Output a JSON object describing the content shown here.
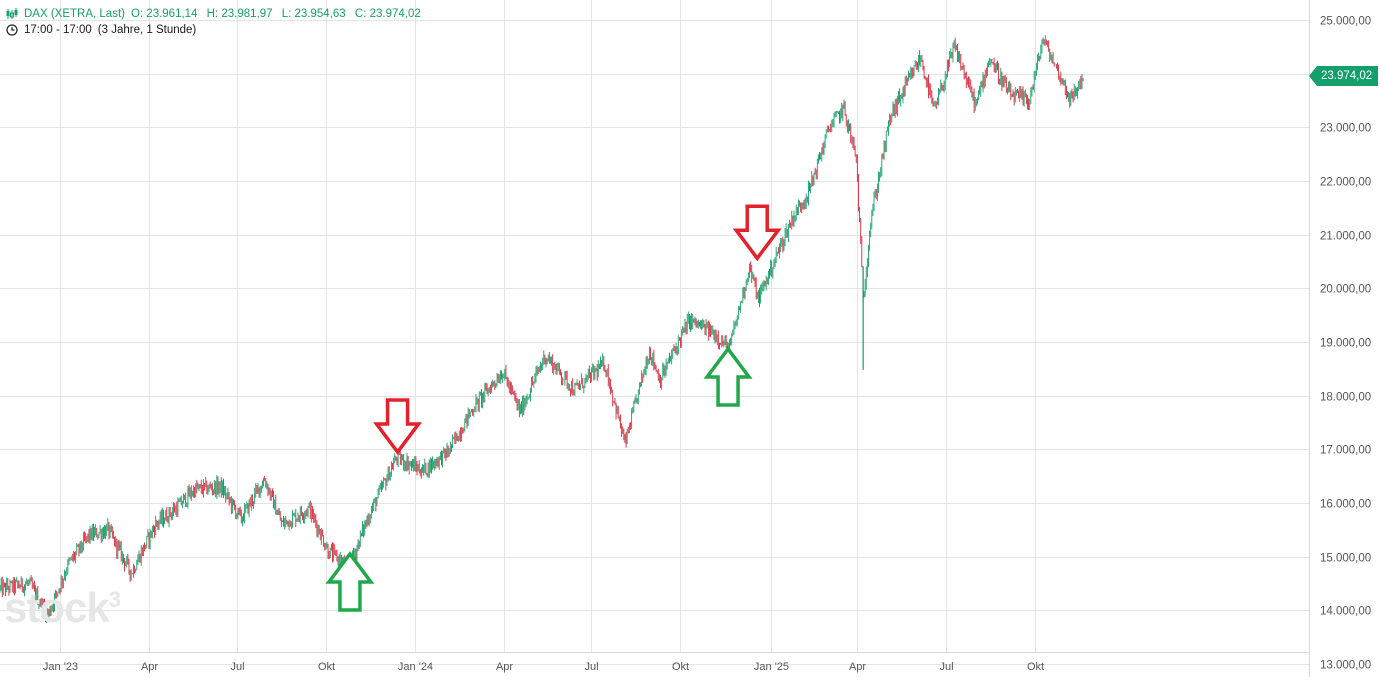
{
  "header": {
    "instrument": "DAX (XETRA, Last)",
    "open": "O: 23.961,14",
    "high": "H: 23.981,97",
    "low": "L: 23.954,63",
    "close": "C: 23.974,02",
    "session": "17:00 - 17:00",
    "range": "(3 Jahre, 1 Stunde)"
  },
  "last_price_label": "23.974,02",
  "watermark": {
    "text": "stock",
    "sup": "3"
  },
  "colors": {
    "up": "#14a06a",
    "down": "#d8263a",
    "grid": "#e4e4e4",
    "arrow_up": "#21a84a",
    "arrow_down": "#e3222b"
  },
  "chart_data": {
    "type": "candlestick",
    "title": "DAX (XETRA, Last)",
    "ylim": [
      13000,
      25000
    ],
    "y_ticks": [
      "13.000,00",
      "14.000,00",
      "15.000,00",
      "16.000,00",
      "17.000,00",
      "18.000,00",
      "19.000,00",
      "20.000,00",
      "21.000,00",
      "22.000,00",
      "23.000,00",
      "24.000,00",
      "25.000,00"
    ],
    "y_tick_values": [
      13000,
      14000,
      15000,
      16000,
      17000,
      18000,
      19000,
      20000,
      21000,
      22000,
      23000,
      24000,
      25000
    ],
    "x_ticks": [
      {
        "label": "Jan '23",
        "date": "2023-01-02"
      },
      {
        "label": "Apr",
        "date": "2023-04-03"
      },
      {
        "label": "Jul",
        "date": "2023-07-03"
      },
      {
        "label": "Okt",
        "date": "2023-10-02"
      },
      {
        "label": "Jan '24",
        "date": "2024-01-02"
      },
      {
        "label": "Apr",
        "date": "2024-04-02"
      },
      {
        "label": "Jul",
        "date": "2024-07-01"
      },
      {
        "label": "Okt",
        "date": "2024-10-01"
      },
      {
        "label": "Jan '25",
        "date": "2025-01-02"
      },
      {
        "label": "Apr",
        "date": "2025-04-01"
      },
      {
        "label": "Jul",
        "date": "2025-07-01"
      },
      {
        "label": "Okt",
        "date": "2025-10-01"
      }
    ],
    "x_range": [
      "2022-11-01",
      "2025-12-19"
    ],
    "series": [
      {
        "values": [
          {
            "date": "2022-11-01",
            "close": 14400
          },
          {
            "date": "2022-12-01",
            "close": 14500
          },
          {
            "date": "2022-12-20",
            "close": 13900
          },
          {
            "date": "2023-01-10",
            "close": 14850
          },
          {
            "date": "2023-02-01",
            "close": 15400
          },
          {
            "date": "2023-02-20",
            "close": 15500
          },
          {
            "date": "2023-03-16",
            "close": 14700
          },
          {
            "date": "2023-04-10",
            "close": 15600
          },
          {
            "date": "2023-05-01",
            "close": 15900
          },
          {
            "date": "2023-05-20",
            "close": 16250
          },
          {
            "date": "2023-06-16",
            "close": 16300
          },
          {
            "date": "2023-07-07",
            "close": 15700
          },
          {
            "date": "2023-07-31",
            "close": 16450
          },
          {
            "date": "2023-08-18",
            "close": 15600
          },
          {
            "date": "2023-09-15",
            "close": 15900
          },
          {
            "date": "2023-10-05",
            "close": 15100
          },
          {
            "date": "2023-10-26",
            "close": 14800
          },
          {
            "date": "2023-11-15",
            "close": 15750
          },
          {
            "date": "2023-12-14",
            "close": 16850
          },
          {
            "date": "2024-01-10",
            "close": 16600
          },
          {
            "date": "2024-02-05",
            "close": 16950
          },
          {
            "date": "2024-03-01",
            "close": 17750
          },
          {
            "date": "2024-04-01",
            "close": 18450
          },
          {
            "date": "2024-04-19",
            "close": 17700
          },
          {
            "date": "2024-05-15",
            "close": 18750
          },
          {
            "date": "2024-06-14",
            "close": 18100
          },
          {
            "date": "2024-07-15",
            "close": 18600
          },
          {
            "date": "2024-08-05",
            "close": 17100
          },
          {
            "date": "2024-08-30",
            "close": 18850
          },
          {
            "date": "2024-09-10",
            "close": 18300
          },
          {
            "date": "2024-10-10",
            "close": 19400
          },
          {
            "date": "2024-11-06",
            "close": 19150
          },
          {
            "date": "2024-11-20",
            "close": 18850
          },
          {
            "date": "2024-12-11",
            "close": 20400
          },
          {
            "date": "2024-12-20",
            "close": 19800
          },
          {
            "date": "2025-01-24",
            "close": 21300
          },
          {
            "date": "2025-02-10",
            "close": 21800
          },
          {
            "date": "2025-03-03",
            "close": 23000
          },
          {
            "date": "2025-03-18",
            "close": 23350
          },
          {
            "date": "2025-03-31",
            "close": 22400
          },
          {
            "date": "2025-04-07",
            "close": 19800
          },
          {
            "date": "2025-04-15",
            "close": 21300
          },
          {
            "date": "2025-05-05",
            "close": 23200
          },
          {
            "date": "2025-06-05",
            "close": 24300
          },
          {
            "date": "2025-06-19",
            "close": 23300
          },
          {
            "date": "2025-07-10",
            "close": 24500
          },
          {
            "date": "2025-08-01",
            "close": 23400
          },
          {
            "date": "2025-08-15",
            "close": 24300
          },
          {
            "date": "2025-09-05",
            "close": 23600
          },
          {
            "date": "2025-09-25",
            "close": 23500
          },
          {
            "date": "2025-10-09",
            "close": 24650
          },
          {
            "date": "2025-11-07",
            "close": 23500
          },
          {
            "date": "2025-11-20",
            "close": 23974.02
          }
        ]
      }
    ],
    "last_value": 23974.02,
    "annotations": [
      {
        "type": "arrow-up",
        "date": "2023-10-27",
        "value": 15050,
        "color": "green"
      },
      {
        "type": "arrow-down",
        "date": "2023-12-15",
        "value": 16950,
        "color": "red"
      },
      {
        "type": "arrow-up",
        "date": "2024-11-19",
        "value": 18870,
        "color": "green"
      },
      {
        "type": "arrow-down",
        "date": "2024-12-19",
        "value": 20560,
        "color": "red"
      }
    ],
    "grid": true
  }
}
